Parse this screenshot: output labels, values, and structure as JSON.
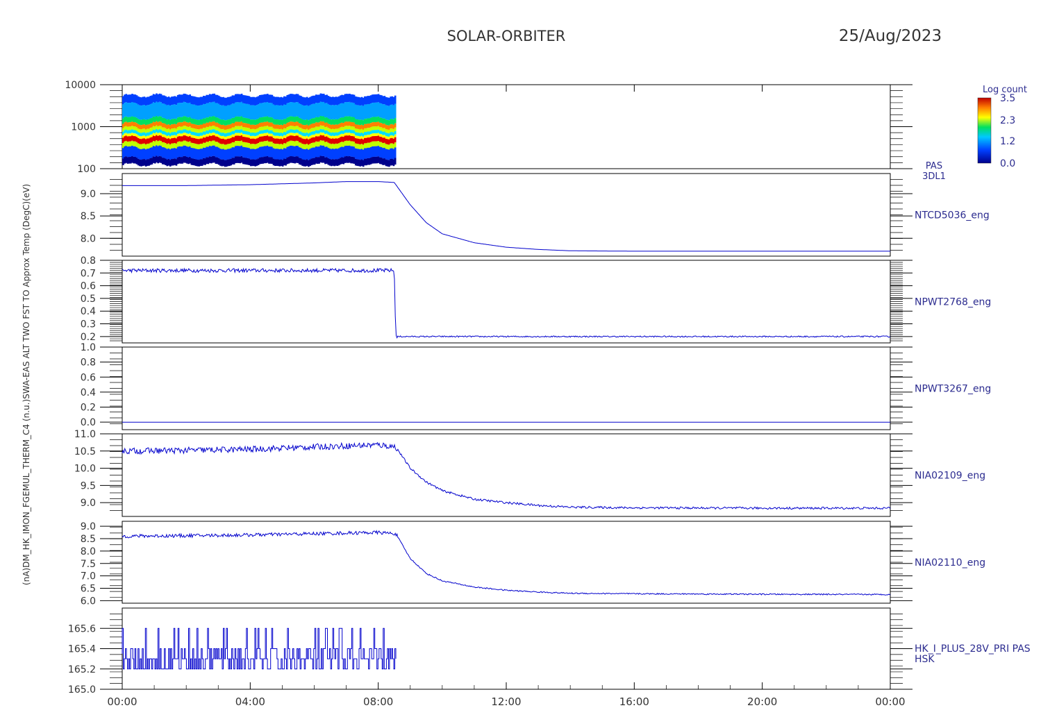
{
  "header": {
    "mission": "SOLAR-ORBITER",
    "date": "25/Aug/2023"
  },
  "yaxis_overlay_label": "(nA)DM_HK_IMON_FGEMUL_THERM_C4 (n.u.)SWA-EAS ALT TWO FST TO Approx Temp (DegC)(eV)",
  "colorbar": {
    "title": "Log count",
    "ticks": [
      "3.5",
      "2.3",
      "1.2",
      "0.0"
    ]
  },
  "chart_data": [
    {
      "type": "heatmap",
      "ylabel_right": [
        "PAS",
        "3DL1"
      ],
      "yscale": "log",
      "ylim": [
        100,
        10000
      ],
      "ytick_labels": [
        "10000",
        "1000",
        "100"
      ],
      "x_range": [
        "00:00",
        "08:32"
      ],
      "color_scale_range": [
        0.0,
        3.5
      ]
    },
    {
      "type": "line",
      "series_label": "NTCD5036_eng",
      "ylim": [
        7.6,
        9.45
      ],
      "ytick_labels": [
        "9.0",
        "8.5",
        "8.0"
      ],
      "x_hours": [
        0,
        2,
        4,
        6,
        7,
        8.0,
        8.5,
        9,
        9.5,
        10,
        11,
        12,
        13,
        14,
        16,
        20,
        24
      ],
      "y": [
        9.18,
        9.18,
        9.2,
        9.24,
        9.27,
        9.27,
        9.25,
        8.75,
        8.35,
        8.1,
        7.9,
        7.8,
        7.75,
        7.72,
        7.71,
        7.71,
        7.71
      ]
    },
    {
      "type": "line",
      "series_label": "NPWT2768_eng",
      "ylim": [
        0.15,
        0.8
      ],
      "ytick_labels": [
        "0.8",
        "0.7",
        "0.6",
        "0.5",
        "0.4",
        "0.3",
        "0.2"
      ],
      "x_hours": [
        0,
        8.5,
        8.55,
        24
      ],
      "y": [
        0.72,
        0.72,
        0.2,
        0.2
      ]
    },
    {
      "type": "line",
      "series_label": "NPWT3267_eng",
      "ylim": [
        -0.1,
        1.0
      ],
      "ytick_labels": [
        "1.0",
        "0.8",
        "0.6",
        "0.4",
        "0.2",
        "0.0"
      ],
      "x_hours": [
        0,
        24
      ],
      "y": [
        0.0,
        0.0
      ]
    },
    {
      "type": "line",
      "series_label": "NIA02109_eng",
      "ylim": [
        8.6,
        11.0
      ],
      "ytick_labels": [
        "11.0",
        "10.5",
        "10.0",
        "9.5",
        "9.0"
      ],
      "x_hours": [
        0,
        2,
        4,
        6,
        8,
        8.55,
        9,
        9.5,
        10,
        11,
        12,
        13,
        14,
        16,
        20,
        24
      ],
      "y": [
        10.5,
        10.52,
        10.55,
        10.62,
        10.68,
        10.62,
        10.0,
        9.6,
        9.35,
        9.1,
        9.0,
        8.92,
        8.87,
        8.85,
        8.84,
        8.84
      ]
    },
    {
      "type": "line",
      "series_label": "NIA02110_eng",
      "ylim": [
        5.9,
        9.2
      ],
      "ytick_labels": [
        "9.0",
        "8.5",
        "8.0",
        "7.5",
        "7.0",
        "6.5",
        "6.0"
      ],
      "x_hours": [
        0,
        2,
        4,
        6,
        8,
        8.55,
        9,
        9.5,
        10,
        11,
        12,
        13,
        14,
        16,
        20,
        24
      ],
      "y": [
        8.6,
        8.62,
        8.65,
        8.7,
        8.75,
        8.7,
        7.7,
        7.1,
        6.8,
        6.55,
        6.42,
        6.35,
        6.3,
        6.28,
        6.26,
        6.25
      ]
    },
    {
      "type": "line",
      "series_label": [
        "HK_I_PLUS_28V_PRI PAS",
        "HSK"
      ],
      "ylim": [
        165.0,
        165.8
      ],
      "ytick_labels": [
        "165.6",
        "165.4",
        "165.2",
        "165.0"
      ],
      "x_hours": [
        0,
        8.55
      ],
      "y_levels": [
        165.2,
        165.6
      ],
      "y_mean": 165.35
    }
  ],
  "xaxis": {
    "tick_labels": [
      "00:00",
      "04:00",
      "08:00",
      "12:00",
      "16:00",
      "20:00",
      "00:00"
    ],
    "x_hours": [
      0,
      4,
      8,
      12,
      16,
      20,
      24
    ]
  },
  "colors": {
    "line": "#0000cc",
    "axis": "#000000",
    "text": "#2b2b8f"
  }
}
